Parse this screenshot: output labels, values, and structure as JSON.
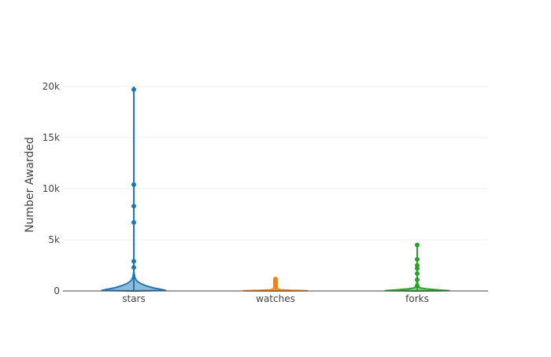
{
  "chart_data": {
    "type": "violin",
    "title": "",
    "xlabel": "",
    "ylabel": "Number Awarded",
    "ylim": [
      0,
      20000
    ],
    "yticks": [
      0,
      5000,
      10000,
      15000,
      20000
    ],
    "ytick_labels": [
      "0",
      "5k",
      "10k",
      "15k",
      "20k"
    ],
    "categories": [
      "stars",
      "watches",
      "forks"
    ],
    "grid": true,
    "legend": "none",
    "series": [
      {
        "color": "#1f77b4",
        "max": 20000,
        "density": [
          [
            0,
            0.0
          ],
          [
            50,
            0.9
          ],
          [
            150,
            0.78
          ],
          [
            300,
            0.55
          ],
          [
            500,
            0.35
          ],
          [
            750,
            0.18
          ],
          [
            1000,
            0.08
          ],
          [
            1300,
            0.03
          ],
          [
            1700,
            0.01
          ],
          [
            2000,
            0.0
          ]
        ],
        "points": [
          19700,
          10400,
          8300,
          6700,
          2900,
          2300
        ]
      },
      {
        "color": "#ff7f0e",
        "max": 1200,
        "density": [
          [
            0,
            0.0
          ],
          [
            20,
            0.9
          ],
          [
            60,
            0.45
          ],
          [
            120,
            0.12
          ],
          [
            250,
            0.05
          ],
          [
            500,
            0.04
          ],
          [
            800,
            0.04
          ],
          [
            1100,
            0.03
          ],
          [
            1200,
            0.0
          ]
        ],
        "points": [
          1150,
          1050,
          950,
          850,
          780,
          700,
          620
        ]
      },
      {
        "color": "#2ca02c",
        "max": 4500,
        "density": [
          [
            0,
            0.0
          ],
          [
            30,
            0.9
          ],
          [
            100,
            0.6
          ],
          [
            200,
            0.25
          ],
          [
            300,
            0.08
          ],
          [
            500,
            0.03
          ],
          [
            800,
            0.01
          ],
          [
            1000,
            0.0
          ]
        ],
        "points": [
          4500,
          3100,
          2500,
          2200,
          1700,
          1100,
          500
        ]
      }
    ]
  }
}
